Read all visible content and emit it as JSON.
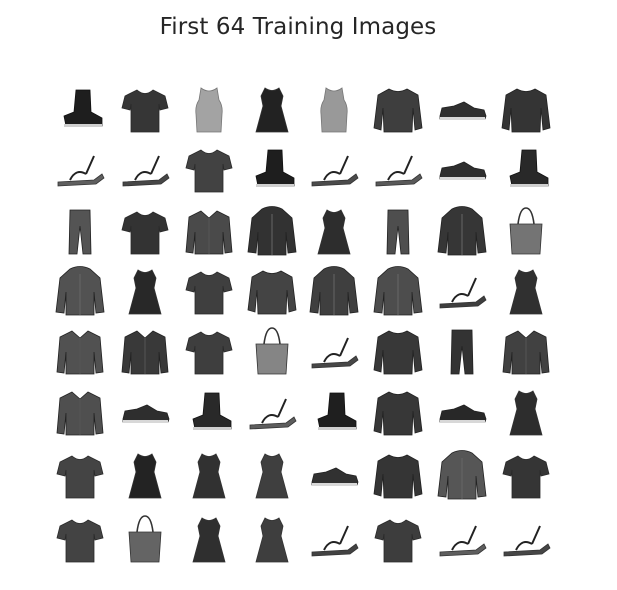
{
  "figure": {
    "title": "First 64 Training Images"
  },
  "grid": {
    "rows": 8,
    "cols": 8,
    "colormap": "grayscale",
    "ink_color": "#1c1c1c",
    "background_color": "#ffffff"
  },
  "images": [
    {
      "row": 1,
      "col": 1,
      "item": "ankle-boot"
    },
    {
      "row": 1,
      "col": 2,
      "item": "t-shirt"
    },
    {
      "row": 1,
      "col": 3,
      "item": "top"
    },
    {
      "row": 1,
      "col": 4,
      "item": "dress"
    },
    {
      "row": 1,
      "col": 5,
      "item": "top"
    },
    {
      "row": 1,
      "col": 6,
      "item": "pullover"
    },
    {
      "row": 1,
      "col": 7,
      "item": "sneaker"
    },
    {
      "row": 1,
      "col": 8,
      "item": "pullover"
    },
    {
      "row": 2,
      "col": 1,
      "item": "sandal"
    },
    {
      "row": 2,
      "col": 2,
      "item": "sandal"
    },
    {
      "row": 2,
      "col": 3,
      "item": "t-shirt"
    },
    {
      "row": 2,
      "col": 4,
      "item": "ankle-boot"
    },
    {
      "row": 2,
      "col": 5,
      "item": "sandal"
    },
    {
      "row": 2,
      "col": 6,
      "item": "sandal"
    },
    {
      "row": 2,
      "col": 7,
      "item": "sneaker"
    },
    {
      "row": 2,
      "col": 8,
      "item": "ankle-boot"
    },
    {
      "row": 3,
      "col": 1,
      "item": "trouser"
    },
    {
      "row": 3,
      "col": 2,
      "item": "t-shirt"
    },
    {
      "row": 3,
      "col": 3,
      "item": "shirt"
    },
    {
      "row": 3,
      "col": 4,
      "item": "coat"
    },
    {
      "row": 3,
      "col": 5,
      "item": "dress"
    },
    {
      "row": 3,
      "col": 6,
      "item": "trouser"
    },
    {
      "row": 3,
      "col": 7,
      "item": "coat"
    },
    {
      "row": 3,
      "col": 8,
      "item": "bag"
    },
    {
      "row": 4,
      "col": 1,
      "item": "coat"
    },
    {
      "row": 4,
      "col": 2,
      "item": "dress"
    },
    {
      "row": 4,
      "col": 3,
      "item": "t-shirt"
    },
    {
      "row": 4,
      "col": 4,
      "item": "pullover"
    },
    {
      "row": 4,
      "col": 5,
      "item": "coat"
    },
    {
      "row": 4,
      "col": 6,
      "item": "coat"
    },
    {
      "row": 4,
      "col": 7,
      "item": "sandal"
    },
    {
      "row": 4,
      "col": 8,
      "item": "dress"
    },
    {
      "row": 5,
      "col": 1,
      "item": "shirt"
    },
    {
      "row": 5,
      "col": 2,
      "item": "shirt"
    },
    {
      "row": 5,
      "col": 3,
      "item": "t-shirt"
    },
    {
      "row": 5,
      "col": 4,
      "item": "bag"
    },
    {
      "row": 5,
      "col": 5,
      "item": "sandal"
    },
    {
      "row": 5,
      "col": 6,
      "item": "pullover"
    },
    {
      "row": 5,
      "col": 7,
      "item": "trouser"
    },
    {
      "row": 5,
      "col": 8,
      "item": "shirt"
    },
    {
      "row": 6,
      "col": 1,
      "item": "shirt"
    },
    {
      "row": 6,
      "col": 2,
      "item": "sneaker"
    },
    {
      "row": 6,
      "col": 3,
      "item": "ankle-boot"
    },
    {
      "row": 6,
      "col": 4,
      "item": "sandal"
    },
    {
      "row": 6,
      "col": 5,
      "item": "ankle-boot"
    },
    {
      "row": 6,
      "col": 6,
      "item": "pullover"
    },
    {
      "row": 6,
      "col": 7,
      "item": "sneaker"
    },
    {
      "row": 6,
      "col": 8,
      "item": "dress"
    },
    {
      "row": 7,
      "col": 1,
      "item": "t-shirt"
    },
    {
      "row": 7,
      "col": 2,
      "item": "dress"
    },
    {
      "row": 7,
      "col": 3,
      "item": "dress"
    },
    {
      "row": 7,
      "col": 4,
      "item": "dress"
    },
    {
      "row": 7,
      "col": 5,
      "item": "sneaker"
    },
    {
      "row": 7,
      "col": 6,
      "item": "pullover"
    },
    {
      "row": 7,
      "col": 7,
      "item": "coat"
    },
    {
      "row": 7,
      "col": 8,
      "item": "t-shirt"
    },
    {
      "row": 8,
      "col": 1,
      "item": "t-shirt"
    },
    {
      "row": 8,
      "col": 2,
      "item": "bag"
    },
    {
      "row": 8,
      "col": 3,
      "item": "dress"
    },
    {
      "row": 8,
      "col": 4,
      "item": "dress"
    },
    {
      "row": 8,
      "col": 5,
      "item": "sandal"
    },
    {
      "row": 8,
      "col": 6,
      "item": "t-shirt"
    },
    {
      "row": 8,
      "col": 7,
      "item": "sandal"
    },
    {
      "row": 8,
      "col": 8,
      "item": "sandal"
    }
  ]
}
